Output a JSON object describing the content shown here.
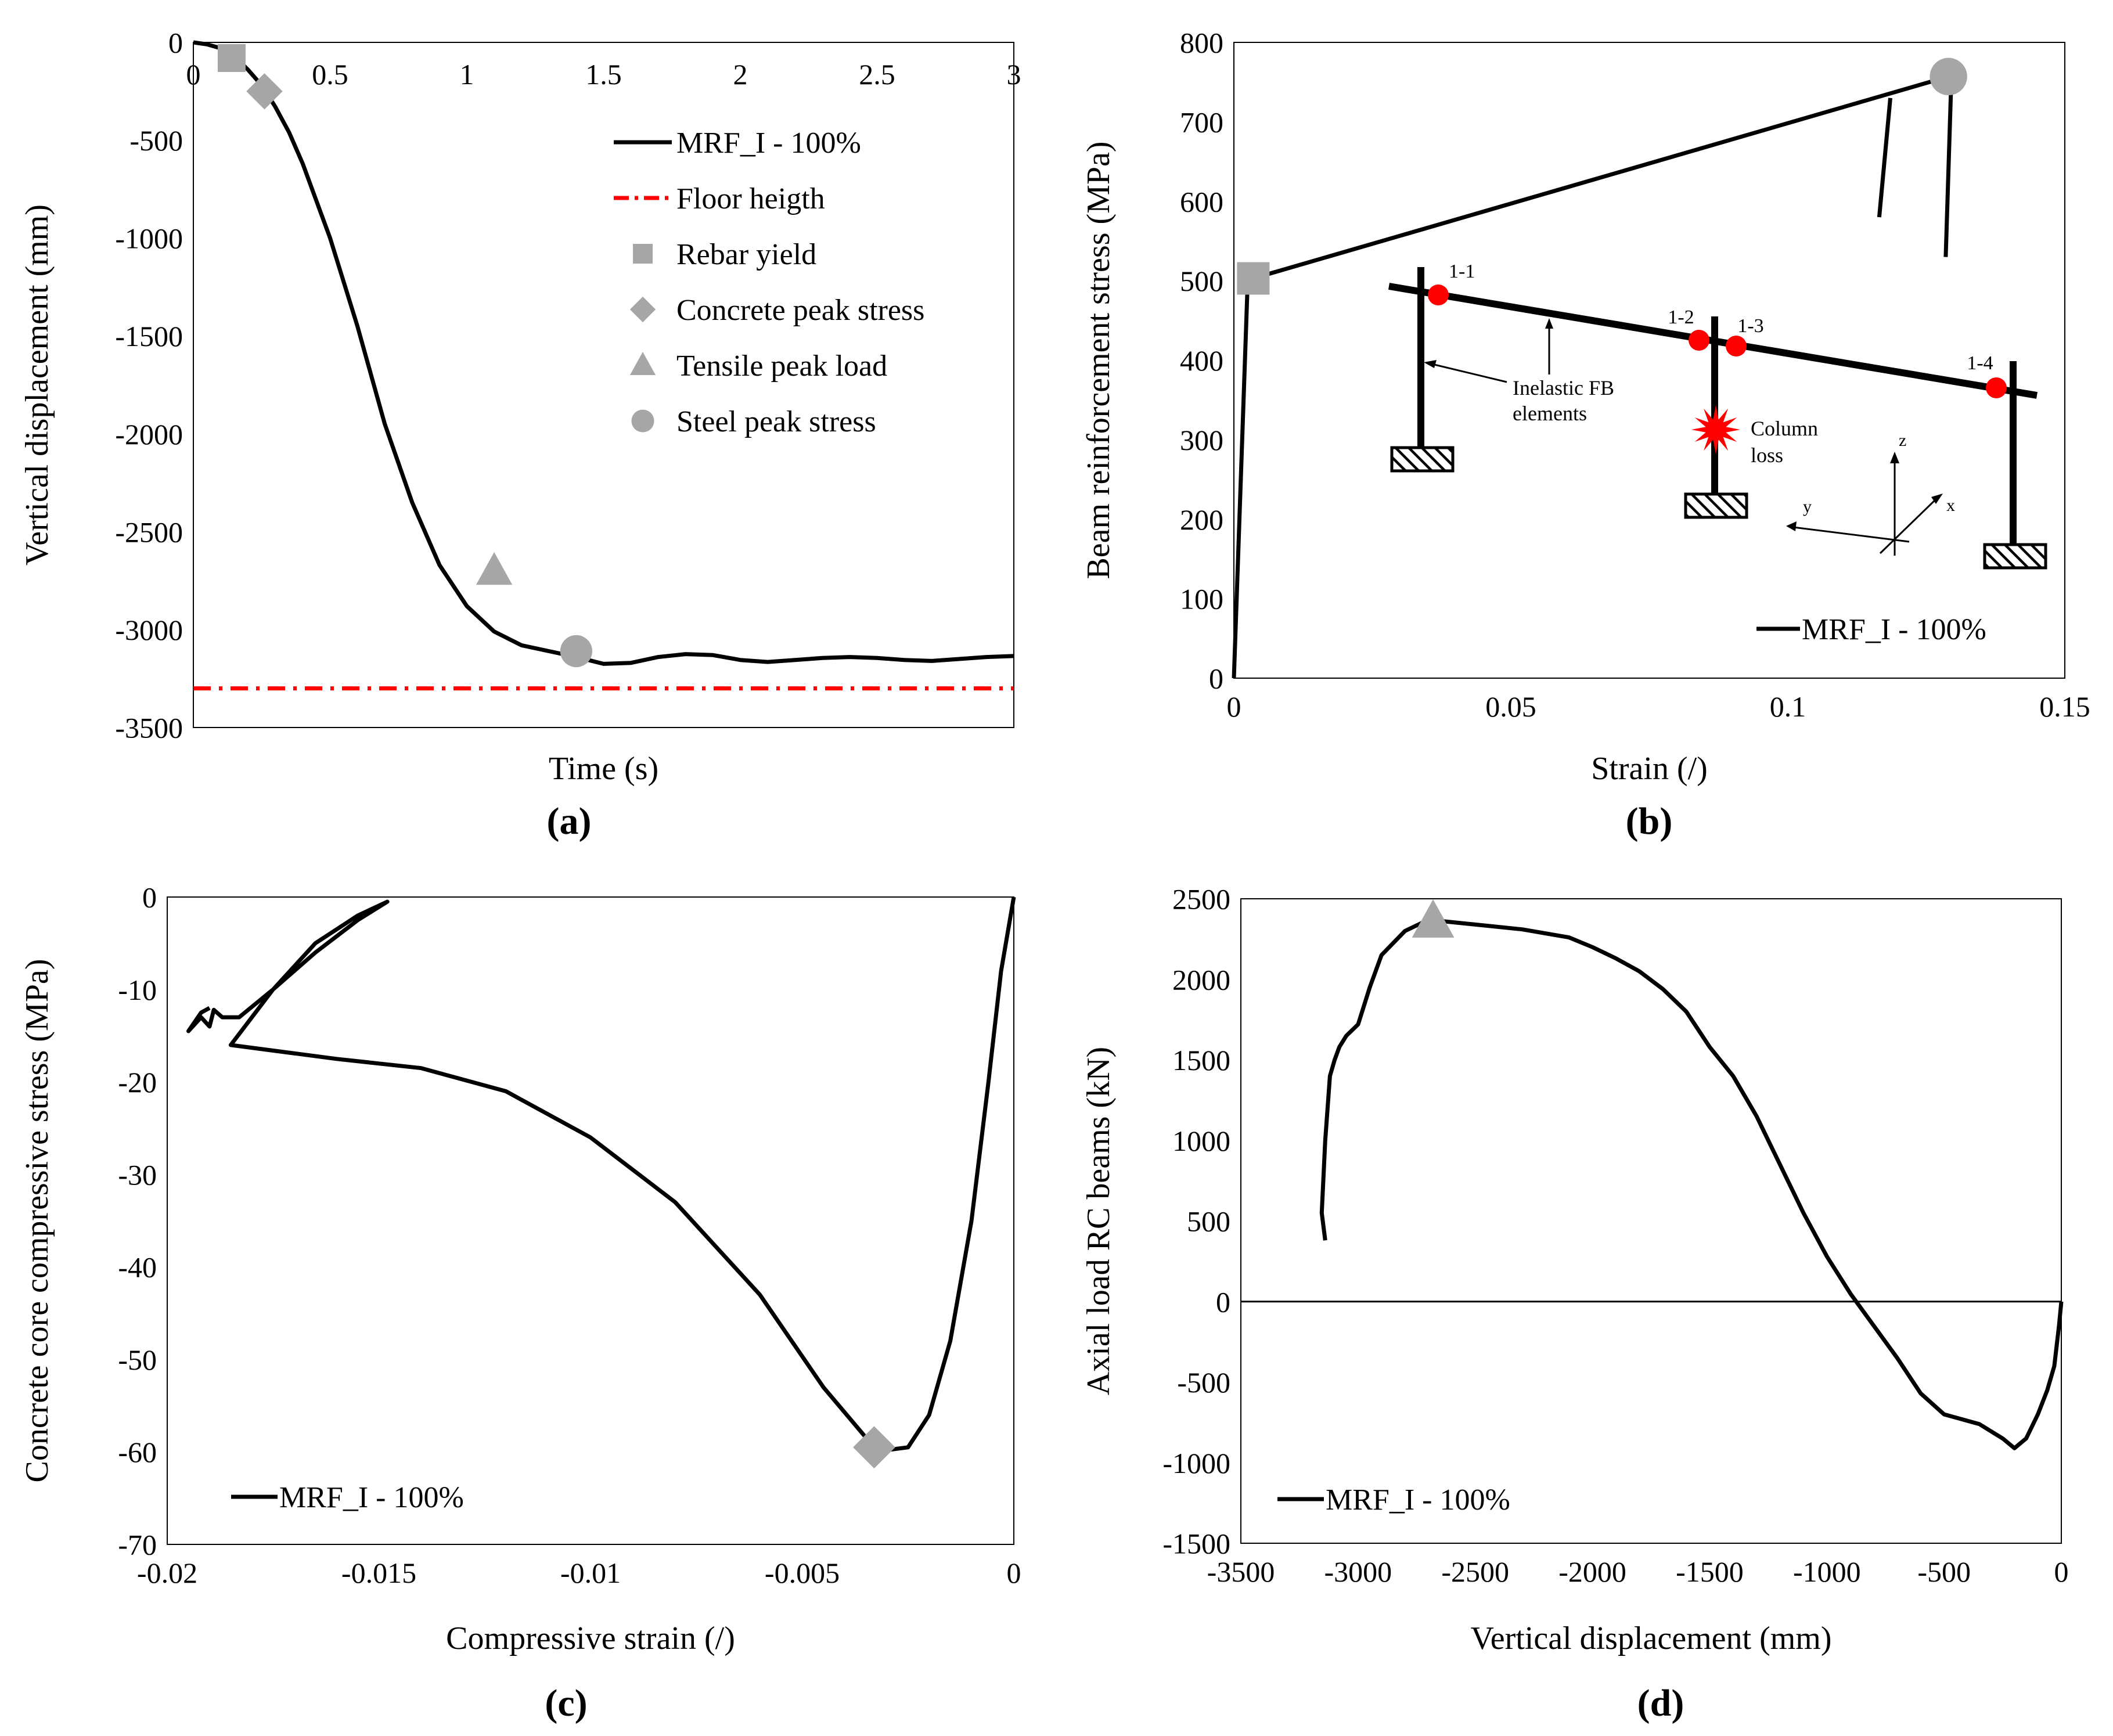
{
  "colors": {
    "line": "#000000",
    "marker": "#a6a6a6",
    "floor": "#ff0000",
    "joint": "#ff0000",
    "frame": "#000000"
  },
  "chart_data": [
    {
      "id": "a",
      "type": "line",
      "panel_label": "(a)",
      "xlabel": "Time (s)",
      "ylabel": "Vertical displacement (mm)",
      "xlim": [
        0,
        3
      ],
      "ylim": [
        -3500,
        0
      ],
      "xticks": [
        0,
        0.5,
        1,
        1.5,
        2,
        2.5,
        3
      ],
      "xtick_labels": [
        "0",
        "0.5",
        "1",
        "1.5",
        "2",
        "2.5",
        "3"
      ],
      "yticks": [
        0,
        -500,
        -1000,
        -1500,
        -2000,
        -2500,
        -3000,
        -3500
      ],
      "ytick_labels": [
        "0",
        "-500",
        "-1000",
        "-1500",
        "-2000",
        "-2500",
        "-3000",
        "-3500"
      ],
      "series": [
        {
          "name": "MRF_I - 100%",
          "style": "solid",
          "x": [
            0,
            0.05,
            0.1,
            0.15,
            0.2,
            0.25,
            0.3,
            0.35,
            0.4,
            0.5,
            0.6,
            0.7,
            0.8,
            0.9,
            1.0,
            1.1,
            1.2,
            1.3,
            1.4,
            1.5,
            1.6,
            1.7,
            1.8,
            1.9,
            2.0,
            2.1,
            2.2,
            2.3,
            2.4,
            2.5,
            2.6,
            2.7,
            2.8,
            2.9,
            3.0
          ],
          "y": [
            0,
            -10,
            -30,
            -70,
            -140,
            -220,
            -330,
            -460,
            -620,
            -1000,
            -1450,
            -1950,
            -2350,
            -2670,
            -2880,
            -3010,
            -3080,
            -3110,
            -3140,
            -3175,
            -3170,
            -3140,
            -3125,
            -3130,
            -3155,
            -3165,
            -3155,
            -3145,
            -3140,
            -3145,
            -3155,
            -3160,
            -3150,
            -3140,
            -3135
          ]
        },
        {
          "name": "Floor heigth",
          "style": "dash-dot",
          "x": [
            0,
            3
          ],
          "y": [
            -3300,
            -3300
          ]
        }
      ],
      "markers": [
        {
          "name": "Rebar yield",
          "shape": "square",
          "x": 0.14,
          "y": -80
        },
        {
          "name": "Concrete peak stress",
          "shape": "diamond",
          "x": 0.26,
          "y": -250
        },
        {
          "name": "Tensile peak load",
          "shape": "triangle",
          "x": 1.1,
          "y": -2700
        },
        {
          "name": "Steel peak stress",
          "shape": "circle",
          "x": 1.4,
          "y": -3110
        }
      ],
      "legend": [
        "MRF_I - 100%",
        "Floor heigth",
        "Rebar yield",
        "Concrete peak stress",
        "Tensile peak load",
        "Steel peak stress"
      ]
    },
    {
      "id": "b",
      "type": "line",
      "panel_label": "(b)",
      "xlabel": "Strain (/)",
      "ylabel": "Beam reinforcement stress (MPa)",
      "xlim": [
        0,
        0.15
      ],
      "ylim": [
        0,
        800
      ],
      "xticks": [
        0,
        0.05,
        0.1,
        0.15
      ],
      "xtick_labels": [
        "0",
        "0.05",
        "0.1",
        "0.15"
      ],
      "yticks": [
        0,
        100,
        200,
        300,
        400,
        500,
        600,
        700,
        800
      ],
      "ytick_labels": [
        "0",
        "100",
        "200",
        "300",
        "400",
        "500",
        "600",
        "700",
        "800"
      ],
      "series": [
        {
          "name": "MRF_I - 100%",
          "segments": [
            {
              "x": [
                0,
                0.0025,
                0.0035,
                0.128
              ],
              "y": [
                0,
                500,
                503,
                755
              ]
            },
            {
              "x": [
                0.1185,
                0.1165
              ],
              "y": [
                730,
                580
              ]
            },
            {
              "x": [
                0.1295,
                0.1285
              ],
              "y": [
                750,
                530
              ]
            }
          ]
        }
      ],
      "markers": [
        {
          "name": "Rebar yield",
          "shape": "square",
          "x": 0.0035,
          "y": 503
        },
        {
          "name": "Steel peak stress",
          "shape": "circle",
          "x": 0.129,
          "y": 757
        }
      ],
      "legend": [
        "MRF_I - 100%"
      ],
      "inset": {
        "joint_labels": [
          "1-1",
          "1-2",
          "1-3",
          "1-4"
        ],
        "element_label_1": "Inelastic FB",
        "element_label_2": "elements",
        "loss_label_1": "Column",
        "loss_label_2": "loss",
        "axis_z": "z",
        "axis_y": "y",
        "axis_x": "x"
      }
    },
    {
      "id": "c",
      "type": "line",
      "panel_label": "(c)",
      "xlabel": "Compressive strain (/)",
      "ylabel": "Concrete core compressive stress (MPa)",
      "xlim": [
        -0.02,
        0
      ],
      "ylim": [
        -70,
        0
      ],
      "xticks": [
        -0.02,
        -0.015,
        -0.01,
        -0.005,
        0
      ],
      "xtick_labels": [
        "-0.02",
        "-0.015",
        "-0.01",
        "-0.005",
        "0"
      ],
      "yticks": [
        0,
        -10,
        -20,
        -30,
        -40,
        -50,
        -60,
        -70
      ],
      "ytick_labels": [
        "0",
        "-10",
        "-20",
        "-30",
        "-40",
        "-50",
        "-60",
        "-70"
      ],
      "series": [
        {
          "name": "MRF_I - 100%",
          "x": [
            0,
            -0.0003,
            -0.0006,
            -0.001,
            -0.0015,
            -0.002,
            -0.0025,
            -0.003,
            -0.0033,
            -0.0045,
            -0.006,
            -0.008,
            -0.01,
            -0.012,
            -0.014,
            -0.016,
            -0.0185,
            -0.0175,
            -0.0165,
            -0.0155,
            -0.0148,
            -0.0155,
            -0.0165,
            -0.0175,
            -0.0183,
            -0.0187,
            -0.0189,
            -0.019,
            -0.0192,
            -0.0195,
            -0.0192,
            -0.019
          ],
          "y": [
            0,
            -8,
            -20,
            -35,
            -48,
            -56,
            -59.5,
            -59.8,
            -59.5,
            -53,
            -43,
            -33,
            -26,
            -21,
            -18.5,
            -17.5,
            -16,
            -10,
            -5,
            -2,
            -0.5,
            -2.5,
            -6,
            -10,
            -13,
            -13,
            -12.2,
            -14,
            -13,
            -14.5,
            -12.5,
            -12
          ]
        }
      ],
      "markers": [
        {
          "name": "Concrete peak stress",
          "shape": "diamond",
          "x": -0.0033,
          "y": -59.5
        }
      ],
      "legend": [
        "MRF_I - 100%"
      ]
    },
    {
      "id": "d",
      "type": "line",
      "panel_label": "(d)",
      "xlabel": "Vertical displacement (mm)",
      "ylabel": "Axial load RC beams (kN)",
      "xlim": [
        -3500,
        0
      ],
      "ylim": [
        -1500,
        2500
      ],
      "xticks": [
        -3500,
        -3000,
        -2500,
        -2000,
        -1500,
        -1000,
        -500,
        0
      ],
      "xtick_labels": [
        "-3500",
        "-3000",
        "-2500",
        "-2000",
        "-1500",
        "-1000",
        "-500",
        "0"
      ],
      "yticks": [
        2500,
        2000,
        1500,
        1000,
        500,
        0,
        -500,
        -1000,
        -1500
      ],
      "ytick_labels": [
        "2500",
        "2000",
        "1500",
        "1000",
        "500",
        "0",
        "-500",
        "-1000",
        "-1500"
      ],
      "series": [
        {
          "name": "MRF_I - 100%",
          "x": [
            0,
            -10,
            -30,
            -60,
            -100,
            -150,
            -200,
            -250,
            -350,
            -500,
            -600,
            -700,
            -800,
            -900,
            -1000,
            -1100,
            -1200,
            -1300,
            -1400,
            -1500,
            -1600,
            -1700,
            -1800,
            -1900,
            -2000,
            -2100,
            -2300,
            -2500,
            -2700,
            -2800,
            -2900,
            -2950,
            -3000,
            -3050,
            -3080,
            -3100,
            -3120,
            -3140,
            -3150,
            -3155,
            -3140
          ],
          "y": [
            0,
            -150,
            -400,
            -550,
            -700,
            -850,
            -910,
            -850,
            -760,
            -700,
            -570,
            -350,
            -150,
            50,
            280,
            550,
            850,
            1150,
            1400,
            1580,
            1800,
            1940,
            2050,
            2130,
            2200,
            2260,
            2310,
            2340,
            2370,
            2300,
            2150,
            1950,
            1720,
            1650,
            1580,
            1500,
            1400,
            1000,
            700,
            550,
            380
          ]
        }
      ],
      "markers": [
        {
          "name": "Tensile peak load",
          "shape": "triangle",
          "x": -2680,
          "y": 2360
        }
      ],
      "legend": [
        "MRF_I - 100%"
      ]
    }
  ]
}
